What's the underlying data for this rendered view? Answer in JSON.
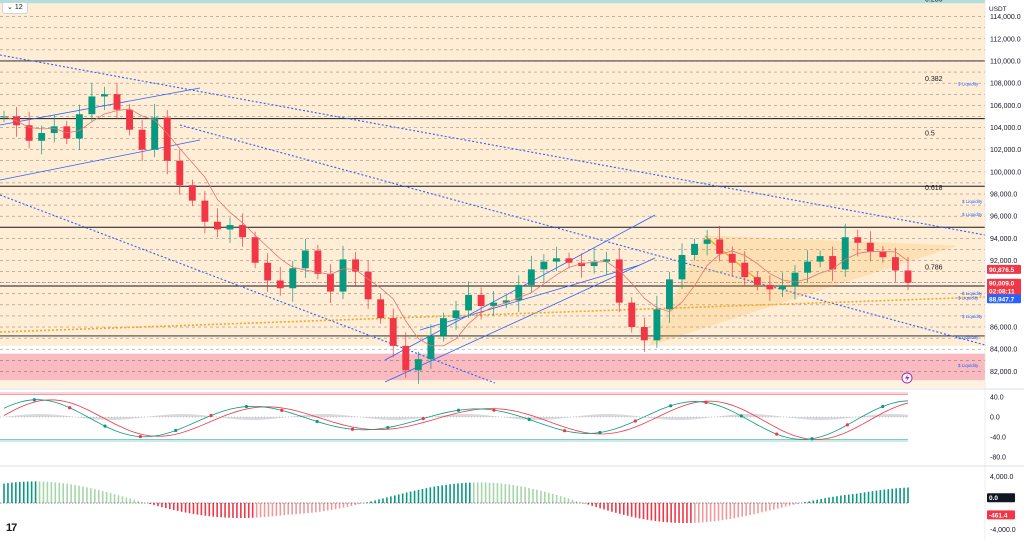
{
  "header": {
    "interval_label": "12",
    "currency": "USDT",
    "logo_text": "17"
  },
  "colors": {
    "up": "#089981",
    "down": "#f23645",
    "fib_band": "#ffe0b2",
    "fib_top_band": "#b2dfdb",
    "red_zone": "#f8a9b0",
    "channel": "#2962ff",
    "triangle": "#f5a623",
    "ma": "#e57373"
  },
  "price_axis": {
    "ticks": [
      "114,000.0",
      "112,000.0",
      "110,000.0",
      "108,000.0",
      "106,000.0",
      "104,000.0",
      "102,000.0",
      "100,000.0",
      "98,000.0",
      "96,000.0",
      "94,000.0",
      "92,000.0",
      "86,000.0",
      "84,000.0",
      "82,000.0"
    ],
    "price_tags": [
      {
        "label": "90,876.5",
        "sub": "",
        "color": "#f23645"
      },
      {
        "label": "90,009.0",
        "sub": "02:08:11",
        "color": "#f23645"
      },
      {
        "label": "88,947.7",
        "sub": "",
        "color": "#2962ff"
      }
    ]
  },
  "fib_levels": [
    {
      "label": "0.236"
    },
    {
      "label": "0.382"
    },
    {
      "label": "0.5"
    },
    {
      "label": "0.618"
    },
    {
      "label": "0.786"
    }
  ],
  "liquidity_labels": [
    "$ Liquidity",
    "$ Liquidity",
    "$ Liquidity",
    "$ Liquidity",
    "$ Liquidity",
    "$ Liquidity",
    "$ Liquidity",
    "$ Liquidity"
  ],
  "oscillator": {
    "ticks": [
      "40.0",
      "0.0",
      "-40.0",
      "-80.0"
    ]
  },
  "histogram": {
    "ticks": [
      "4,000.0",
      "0.0",
      "-4,000.0"
    ],
    "tags": [
      {
        "label": "0.0",
        "color": "#131722"
      },
      {
        "label": "-461.4",
        "color": "#f23645"
      }
    ]
  },
  "chart_data": {
    "type": "candlestick",
    "symbol_quote": "USDT",
    "price_range": [
      80500,
      115500
    ],
    "fib_prices": [
      115200,
      108000,
      103100,
      98200,
      91000
    ],
    "horizontal_levels": [
      110000,
      104800,
      98700,
      95000,
      89700,
      85200
    ],
    "current_price": 90009.0,
    "candles_approx": [
      105000,
      104200,
      102800,
      103500,
      104100,
      103000,
      105200,
      106800,
      107000,
      105600,
      103800,
      102000,
      104900,
      101000,
      98800,
      97400,
      95500,
      94800,
      95200,
      94100,
      91800,
      90200,
      89500,
      91300,
      92900,
      90800,
      89200,
      92100,
      91000,
      88500,
      86800,
      84300,
      82100,
      83100,
      85200,
      86800,
      87500,
      88900,
      87900,
      88200,
      88400,
      89800,
      91200,
      91900,
      92200,
      91800,
      91500,
      91900,
      92100,
      88200,
      86000,
      84800,
      87600,
      90300,
      92500,
      93500,
      93900,
      92600,
      91800,
      90500,
      89800,
      89400,
      89700,
      90900,
      91900,
      92400,
      91200,
      94100,
      93600,
      92800,
      92300,
      91100,
      90000
    ],
    "oscillator_range": [
      -90,
      50
    ],
    "histogram_range": [
      -5000,
      5000
    ],
    "histogram_last": -461.4
  }
}
